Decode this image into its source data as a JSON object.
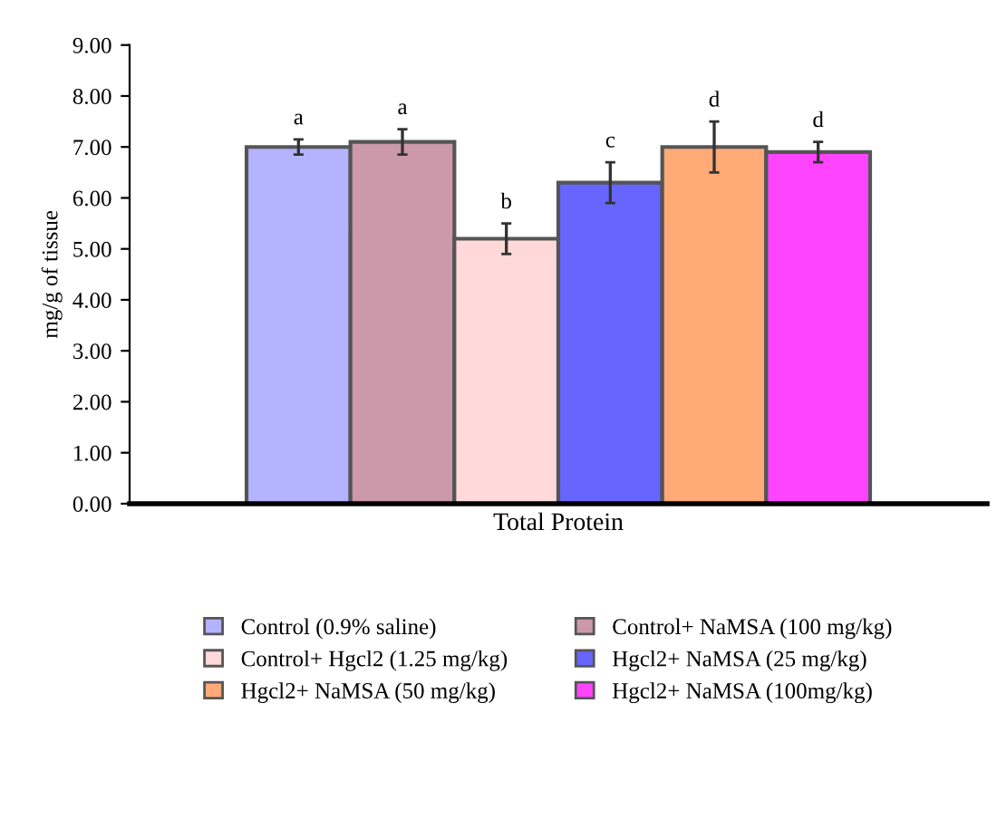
{
  "chart_data": {
    "type": "bar",
    "ylabel": "mg/g of tissue",
    "categories": [
      "Total Protein"
    ],
    "series": [
      {
        "name": "Control (0.9% saline)",
        "color": "#b3b3ff",
        "values": [
          7.0
        ],
        "errors": [
          0.15
        ]
      },
      {
        "name": "Control+ NaMSA (100 mg/kg)",
        "color": "#cc99aa",
        "values": [
          7.1
        ],
        "errors": [
          0.25
        ]
      },
      {
        "name": "Control+ Hgcl2 (1.25 mg/kg)",
        "color": "#ffd9d9",
        "values": [
          5.2
        ],
        "errors": [
          0.3
        ]
      },
      {
        "name": "Hgcl2+ NaMSA (25 mg/kg)",
        "color": "#6666ff",
        "values": [
          6.3
        ],
        "errors": [
          0.4
        ]
      },
      {
        "name": "Hgcl2+ NaMSA (50 mg/kg)",
        "color": "#ffaa77",
        "values": [
          7.0
        ],
        "errors": [
          0.5
        ]
      },
      {
        "name": "Hgcl2+ NaMSA (100mg/kg)",
        "color": "#ff44ff",
        "values": [
          6.9
        ],
        "errors": [
          0.2
        ]
      }
    ],
    "annotations": [
      "a",
      "a",
      "b",
      "c",
      "d",
      "d"
    ],
    "ylim": [
      0,
      9
    ],
    "yticks": [
      {
        "value": 0,
        "label": "0.00"
      },
      {
        "value": 1,
        "label": "1.00"
      },
      {
        "value": 2,
        "label": "2.00"
      },
      {
        "value": 3,
        "label": "3.00"
      },
      {
        "value": 4,
        "label": "4.00"
      },
      {
        "value": 5,
        "label": "5.00"
      },
      {
        "value": 6,
        "label": "6.00"
      },
      {
        "value": 7,
        "label": "7.00"
      },
      {
        "value": 8,
        "label": "8.00"
      },
      {
        "value": 9,
        "label": "9.00"
      }
    ],
    "grid": false,
    "legend": "bottom"
  }
}
